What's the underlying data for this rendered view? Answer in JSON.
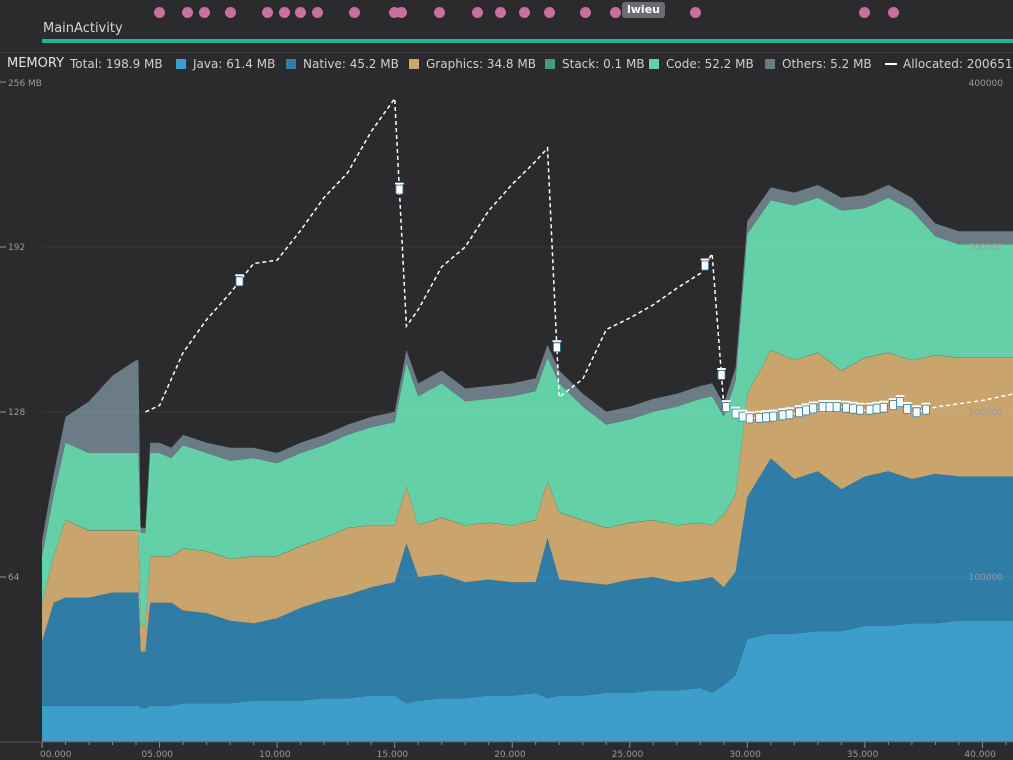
{
  "colors": {
    "java": "#3d9dcb",
    "native": "#2f7da6",
    "graphics": "#c9a46d",
    "stack": "#3f9e7c",
    "code": "#63d0a8",
    "others": "#6b7c86",
    "allocated": "#ffffff",
    "activity": "#1fb59a",
    "event": "#c86f9e"
  },
  "activity": {
    "name": "MainActivity"
  },
  "event_tag": "lwieu",
  "event_times": [
    5.0,
    6.2,
    6.9,
    8.0,
    9.6,
    10.3,
    11.0,
    11.7,
    13.3,
    15.0,
    15.3,
    16.9,
    18.5,
    19.5,
    20.5,
    21.6,
    23.1,
    24.4,
    27.8,
    35.0,
    36.2
  ],
  "legend": {
    "title": "MEMORY",
    "total": "Total: 198.9 MB",
    "java": "Java: 61.4 MB",
    "native": "Native: 45.2 MB",
    "graphics": "Graphics: 34.8 MB",
    "stack": "Stack: 0.1 MB",
    "code": "Code: 52.2 MB",
    "others": "Others: 5.2 MB",
    "allocated": "Allocated: 200651"
  },
  "chart_data": {
    "type": "area",
    "stacked": true,
    "xlim": [
      0,
      41.3
    ],
    "ylim": [
      0,
      256
    ],
    "y2lim": [
      0,
      400000
    ],
    "x_ticks": [
      0,
      5,
      10,
      15,
      20,
      25,
      30,
      35,
      40
    ],
    "x_tick_labels": [
      "00.000",
      "05.000",
      "10.000",
      "15.000",
      "20.000",
      "25.000",
      "30.000",
      "35.000",
      "40.000"
    ],
    "y_ticks": [
      64,
      128,
      192,
      256
    ],
    "y_tick_labels": [
      "64",
      "128",
      "192",
      "256 MB"
    ],
    "y2_ticks": [
      100000,
      200000,
      300000,
      400000
    ],
    "y2_tick_labels": [
      "100000",
      "200000",
      "300000",
      "400000"
    ],
    "x": [
      0,
      0.5,
      1,
      2,
      3,
      4,
      4.1,
      4.2,
      4.4,
      4.6,
      5,
      5.5,
      6,
      7,
      8,
      9,
      10,
      11,
      12,
      13,
      14,
      15,
      15.5,
      16,
      17,
      18,
      19,
      20,
      21,
      21.5,
      22,
      23,
      24,
      25,
      26,
      27,
      28,
      28.5,
      29,
      29.5,
      30,
      31,
      32,
      33,
      34,
      35,
      36,
      37,
      38,
      39,
      40,
      41.3
    ],
    "series": [
      {
        "name": "Java",
        "values": [
          14,
          14,
          14,
          14,
          14,
          14,
          14,
          13,
          13,
          14,
          14,
          14,
          15,
          15,
          15,
          16,
          16,
          16,
          17,
          17,
          18,
          18,
          15,
          16,
          17,
          17,
          18,
          18,
          19,
          17,
          18,
          18,
          19,
          19,
          20,
          20,
          21,
          19,
          22,
          26,
          40,
          42,
          42,
          43,
          43,
          45,
          45,
          46,
          46,
          47,
          47,
          47
        ]
      },
      {
        "name": "Native",
        "values": [
          25,
          40,
          42,
          42,
          44,
          44,
          44,
          22,
          22,
          40,
          40,
          40,
          36,
          35,
          32,
          30,
          32,
          36,
          38,
          40,
          42,
          44,
          62,
          48,
          48,
          45,
          45,
          44,
          43,
          62,
          45,
          44,
          42,
          44,
          44,
          42,
          42,
          45,
          38,
          40,
          55,
          68,
          60,
          62,
          55,
          58,
          60,
          56,
          58,
          56,
          56,
          56
        ]
      },
      {
        "name": "Graphics",
        "values": [
          15,
          18,
          30,
          26,
          24,
          24,
          24,
          10,
          10,
          18,
          18,
          18,
          24,
          24,
          24,
          26,
          24,
          24,
          24,
          26,
          24,
          22,
          22,
          20,
          22,
          22,
          22,
          22,
          24,
          22,
          26,
          24,
          22,
          22,
          22,
          22,
          22,
          20,
          28,
          30,
          40,
          42,
          46,
          46,
          46,
          46,
          46,
          46,
          46,
          46,
          46,
          46
        ]
      },
      {
        "name": "Stack",
        "values": [
          0.1,
          0.1,
          0.1,
          0.1,
          0.1,
          0.1,
          0.1,
          0.1,
          0.1,
          0.1,
          0.1,
          0.1,
          0.1,
          0.1,
          0.1,
          0.1,
          0.1,
          0.1,
          0.1,
          0.1,
          0.1,
          0.1,
          0.1,
          0.1,
          0.1,
          0.1,
          0.1,
          0.1,
          0.1,
          0.1,
          0.1,
          0.1,
          0.1,
          0.1,
          0.1,
          0.1,
          0.1,
          0.1,
          0.1,
          0.1,
          0.1,
          0.1,
          0.1,
          0.1,
          0.1,
          0.1,
          0.1,
          0.1,
          0.1,
          0.1,
          0.1,
          0.1
        ]
      },
      {
        "name": "Code",
        "values": [
          18,
          24,
          30,
          30,
          30,
          30,
          30,
          36,
          36,
          40,
          40,
          38,
          40,
          38,
          38,
          38,
          36,
          36,
          36,
          36,
          38,
          40,
          48,
          50,
          52,
          48,
          48,
          50,
          50,
          48,
          50,
          44,
          40,
          40,
          42,
          46,
          48,
          50,
          38,
          44,
          62,
          58,
          60,
          60,
          62,
          58,
          60,
          58,
          46,
          44,
          44,
          44
        ]
      },
      {
        "name": "Others",
        "values": [
          6,
          8,
          10,
          20,
          30,
          36,
          36,
          2,
          2,
          4,
          4,
          4,
          4,
          4,
          5,
          4,
          4,
          4,
          4,
          4,
          4,
          4,
          5,
          5,
          5,
          5,
          5,
          5,
          5,
          5,
          5,
          5,
          5,
          5,
          5,
          5,
          5,
          5,
          5,
          5,
          5,
          5,
          5,
          5,
          5,
          5,
          5,
          5,
          5,
          5,
          5,
          5
        ]
      }
    ],
    "allocated": {
      "x": [
        4.4,
        5,
        6,
        7,
        8,
        9,
        10,
        11,
        12,
        13,
        14,
        15,
        15.5,
        16,
        17,
        18,
        19,
        20,
        21,
        21.5,
        22,
        23,
        24,
        25,
        26,
        27,
        28,
        28.5,
        29,
        29.5,
        30,
        31,
        32,
        33,
        34,
        35,
        36,
        36.5,
        37,
        38,
        39,
        40,
        41.3
      ],
      "values": [
        200000,
        204000,
        236000,
        256000,
        272000,
        290000,
        292000,
        310000,
        330000,
        345000,
        370000,
        390000,
        252000,
        262000,
        288000,
        300000,
        322000,
        338000,
        352000,
        360000,
        209000,
        220000,
        250000,
        257000,
        265000,
        275000,
        284000,
        296000,
        204000,
        199000,
        196000,
        197000,
        199000,
        203000,
        203000,
        201000,
        203000,
        206000,
        199000,
        203000,
        205000,
        207000,
        211000
      ]
    },
    "gc_markers": [
      8.4,
      15.2,
      21.9,
      28.2,
      28.9,
      29.1,
      29.5,
      29.8,
      30.1,
      30.5,
      30.8,
      31.1,
      31.5,
      31.8,
      32.2,
      32.5,
      32.8,
      33.2,
      33.5,
      33.8,
      34.2,
      34.5,
      34.8,
      35.2,
      35.5,
      35.8,
      36.2,
      36.5,
      36.8,
      37.2,
      37.6
    ]
  }
}
